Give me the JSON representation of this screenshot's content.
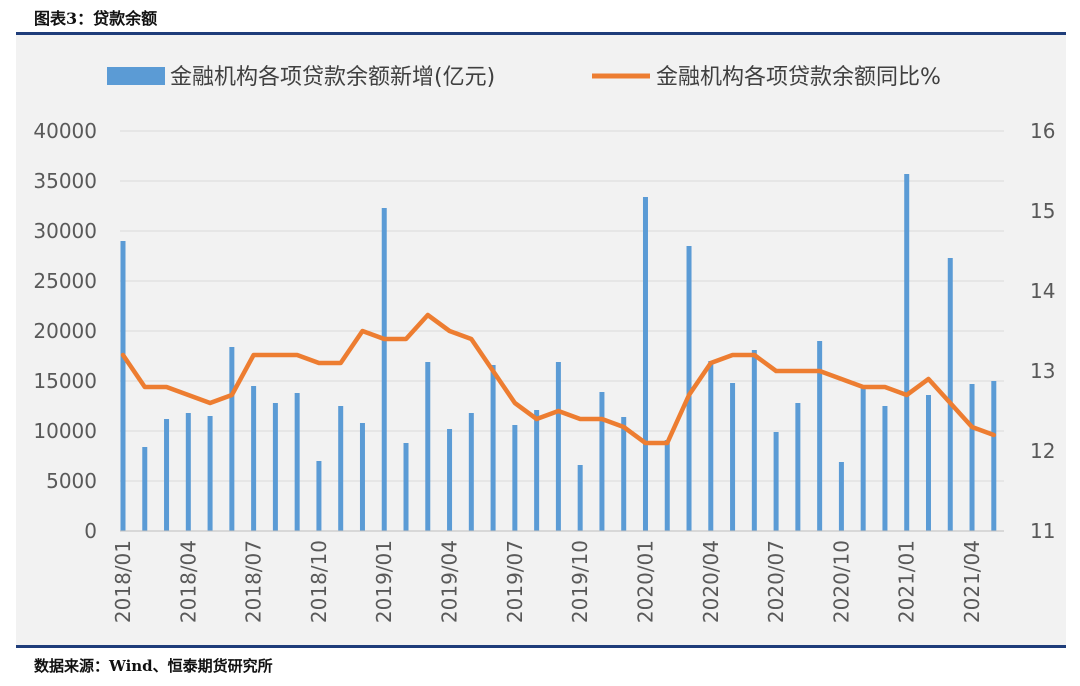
{
  "figure": {
    "title": "图表3：贷款余额",
    "source": "数据来源：Wind、恒泰期货研究所"
  },
  "colors": {
    "bar": "#5b9bd5",
    "line": "#ed7d31",
    "grid": "#d9d9d9",
    "rule": "#1f3d7a"
  },
  "chart_data": {
    "type": "bar+line",
    "grid": true,
    "legend_position": "top",
    "x_labels": [
      "2018/01",
      "2018/04",
      "2018/07",
      "2018/10",
      "2019/01",
      "2019/04",
      "2019/07",
      "2019/10",
      "2020/01",
      "2020/04",
      "2020/07",
      "2020/10",
      "2021/01",
      "2021/04"
    ],
    "y_left": {
      "range": [
        0,
        40000
      ],
      "ticks": [
        "0",
        "5000",
        "10000",
        "15000",
        "20000",
        "25000",
        "30000",
        "35000",
        "40000"
      ]
    },
    "y_right": {
      "range": [
        11,
        16
      ],
      "ticks": [
        "11",
        "12",
        "13",
        "14",
        "15",
        "16"
      ]
    },
    "x": [
      "2018/01",
      "2018/02",
      "2018/03",
      "2018/04",
      "2018/05",
      "2018/06",
      "2018/07",
      "2018/08",
      "2018/09",
      "2018/10",
      "2018/11",
      "2018/12",
      "2019/01",
      "2019/02",
      "2019/03",
      "2019/04",
      "2019/05",
      "2019/06",
      "2019/07",
      "2019/08",
      "2019/09",
      "2019/10",
      "2019/11",
      "2019/12",
      "2020/01",
      "2020/02",
      "2020/03",
      "2020/04",
      "2020/05",
      "2020/06",
      "2020/07",
      "2020/08",
      "2020/09",
      "2020/10",
      "2020/11",
      "2020/12",
      "2021/01",
      "2021/02",
      "2021/03",
      "2021/04",
      "2021/05"
    ],
    "series": [
      {
        "name": "金融机构各项贷款余额新增(亿元)",
        "type": "bar",
        "axis": "left",
        "values": [
          29000,
          8400,
          11200,
          11800,
          11500,
          18400,
          14500,
          12800,
          13800,
          7000,
          12500,
          10800,
          32300,
          8800,
          16900,
          10200,
          11800,
          16600,
          10600,
          12100,
          16900,
          6600,
          13900,
          11400,
          33400,
          9100,
          28500,
          17000,
          14800,
          18100,
          9900,
          12800,
          19000,
          6900,
          14300,
          12500,
          35700,
          13600,
          27300,
          14700,
          15000
        ]
      },
      {
        "name": "金融机构各项贷款余额同比%",
        "type": "line",
        "axis": "right",
        "values": [
          13.2,
          12.8,
          12.8,
          12.7,
          12.6,
          12.7,
          13.2,
          13.2,
          13.2,
          13.1,
          13.1,
          13.5,
          13.4,
          13.4,
          13.7,
          13.5,
          13.4,
          13.0,
          12.6,
          12.4,
          12.5,
          12.4,
          12.4,
          12.3,
          12.1,
          12.1,
          12.7,
          13.1,
          13.2,
          13.2,
          13.0,
          13.0,
          13.0,
          12.9,
          12.8,
          12.8,
          12.7,
          12.9,
          12.6,
          12.3,
          12.2
        ]
      }
    ]
  }
}
